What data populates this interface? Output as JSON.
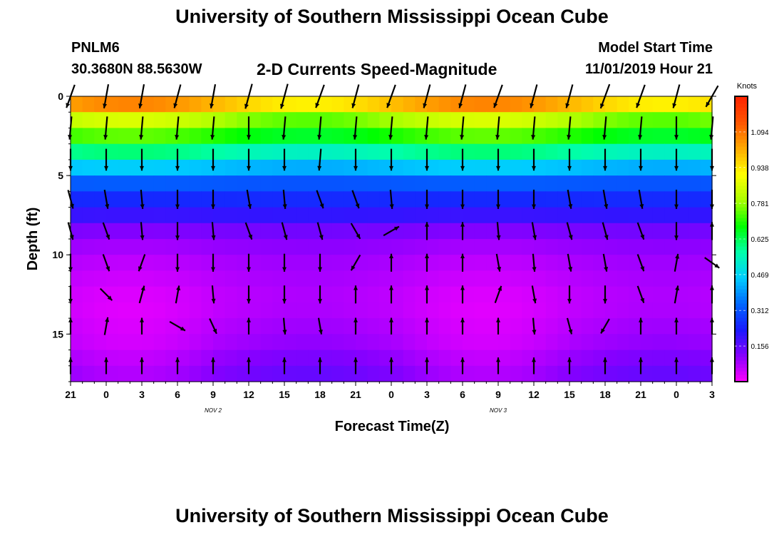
{
  "header": {
    "title": "University of Southern Mississippi Ocean Cube",
    "station_id": "PNLM6",
    "station_coords": "30.3680N 88.5630W",
    "plot_title": "2-D Currents Speed-Magnitude",
    "model_start_label": "Model Start Time",
    "model_start_value": "11/01/2019 Hour 21"
  },
  "footer": {
    "title": "University of Southern Mississippi Ocean Cube"
  },
  "chart_data": {
    "type": "heatmap",
    "title": "2-D Currents Speed-Magnitude",
    "xlabel": "Forecast Time(Z)",
    "ylabel": "Depth (ft)",
    "x_tick_labels": [
      "21",
      "0",
      "3",
      "6",
      "9",
      "12",
      "15",
      "18",
      "21",
      "0",
      "3",
      "6",
      "9",
      "12",
      "15",
      "18",
      "21",
      "0",
      "3"
    ],
    "x_hours": [
      0,
      3,
      6,
      9,
      12,
      15,
      18,
      21,
      24,
      27,
      30,
      33,
      36,
      39,
      42,
      45,
      48,
      51,
      54
    ],
    "x_range_hours": [
      0,
      54
    ],
    "date_labels": [
      {
        "text": "NOV 2",
        "hour": 15
      },
      {
        "text": "NOV 3",
        "hour": 39
      }
    ],
    "y_ticks": [
      0,
      5,
      10,
      15
    ],
    "ylim": [
      0,
      18
    ],
    "y_inverted": true,
    "colorbar": {
      "title": "Knots",
      "tick_labels": [
        "1.094",
        "0.938",
        "0.781",
        "0.625",
        "0.469",
        "0.312",
        "0.156"
      ],
      "tick_values": [
        1.094,
        0.938,
        0.781,
        0.625,
        0.469,
        0.312,
        0.156
      ],
      "range": [
        0,
        1.25
      ],
      "colors": [
        "#ff00ff",
        "#8800ff",
        "#1a1aff",
        "#0066ff",
        "#00ccff",
        "#00ffaa",
        "#00ff00",
        "#aaff00",
        "#ffff00",
        "#ffaa00",
        "#ff5500",
        "#ff2200"
      ]
    },
    "depth_layers": [
      {
        "depth": 0.5,
        "speed": 1.0
      },
      {
        "depth": 1.5,
        "speed": 0.8
      },
      {
        "depth": 2.5,
        "speed": 0.7
      },
      {
        "depth": 3.5,
        "speed": 0.57
      },
      {
        "depth": 4.5,
        "speed": 0.44
      },
      {
        "depth": 5.5,
        "speed": 0.32
      },
      {
        "depth": 6.5,
        "speed": 0.25
      },
      {
        "depth": 7.5,
        "speed": 0.2
      },
      {
        "depth": 8.5,
        "speed": 0.13
      },
      {
        "depth": 9.5,
        "speed": 0.1
      },
      {
        "depth": 10.5,
        "speed": 0.08
      },
      {
        "depth": 11.5,
        "speed": 0.07
      },
      {
        "depth": 12.5,
        "speed": 0.06
      },
      {
        "depth": 13.5,
        "speed": 0.06
      },
      {
        "depth": 14.5,
        "speed": 0.07
      },
      {
        "depth": 15.5,
        "speed": 0.08
      },
      {
        "depth": 16.5,
        "speed": 0.1
      },
      {
        "depth": 17.5,
        "speed": 0.12
      }
    ],
    "vector_depths": [
      0,
      2,
      4,
      6.5,
      8.5,
      10.5,
      12.5,
      14.5,
      17
    ],
    "vector_times": [
      0,
      3,
      6,
      9,
      12,
      15,
      18,
      21,
      24,
      27,
      30,
      33,
      36,
      39,
      42,
      45,
      48,
      51,
      54
    ],
    "vector_direction_deg": [
      [
        200,
        190,
        190,
        195,
        190,
        195,
        195,
        200,
        195,
        200,
        195,
        195,
        200,
        195,
        195,
        200,
        200,
        195,
        210
      ],
      [
        185,
        185,
        185,
        185,
        185,
        180,
        185,
        185,
        185,
        185,
        185,
        185,
        185,
        185,
        185,
        185,
        185,
        180,
        185
      ],
      [
        180,
        180,
        180,
        180,
        180,
        180,
        180,
        185,
        180,
        180,
        180,
        180,
        180,
        180,
        180,
        180,
        180,
        180,
        180
      ],
      [
        165,
        170,
        175,
        180,
        180,
        170,
        175,
        160,
        160,
        175,
        180,
        180,
        180,
        180,
        170,
        170,
        170,
        180,
        180
      ],
      [
        165,
        160,
        175,
        180,
        175,
        160,
        165,
        165,
        150,
        60,
        0,
        0,
        175,
        170,
        165,
        165,
        160,
        180,
        0
      ],
      [
        180,
        160,
        200,
        180,
        180,
        180,
        180,
        180,
        210,
        0,
        0,
        0,
        170,
        175,
        170,
        170,
        160,
        10,
        125
      ],
      [
        180,
        135,
        15,
        10,
        175,
        180,
        180,
        180,
        0,
        0,
        0,
        0,
        20,
        170,
        180,
        180,
        160,
        10,
        0
      ],
      [
        0,
        10,
        0,
        120,
        155,
        0,
        175,
        170,
        0,
        0,
        0,
        0,
        0,
        175,
        165,
        210,
        0,
        0,
        0
      ],
      [
        0,
        0,
        0,
        0,
        0,
        0,
        0,
        0,
        0,
        0,
        0,
        0,
        0,
        0,
        0,
        0,
        0,
        0,
        0
      ]
    ],
    "vector_speed_kt": [
      [
        0.9,
        0.9,
        0.9,
        0.9,
        0.9,
        1.0,
        1.0,
        0.9,
        0.9,
        0.9,
        0.9,
        0.9,
        0.9,
        0.9,
        0.9,
        1.0,
        0.9,
        0.9,
        0.9
      ],
      [
        0.8,
        0.8,
        0.8,
        0.8,
        0.8,
        0.8,
        0.8,
        0.8,
        0.8,
        0.8,
        0.8,
        0.8,
        0.8,
        0.8,
        0.8,
        0.8,
        0.8,
        0.8,
        0.8
      ],
      [
        0.7,
        0.7,
        0.7,
        0.7,
        0.7,
        0.7,
        0.7,
        0.7,
        0.7,
        0.7,
        0.7,
        0.7,
        0.7,
        0.7,
        0.7,
        0.7,
        0.7,
        0.7,
        0.7
      ],
      [
        0.5,
        0.5,
        0.5,
        0.5,
        0.5,
        0.5,
        0.5,
        0.5,
        0.5,
        0.5,
        0.5,
        0.5,
        0.5,
        0.5,
        0.5,
        0.5,
        0.5,
        0.5,
        0.5
      ],
      [
        0.4,
        0.4,
        0.4,
        0.4,
        0.4,
        0.4,
        0.4,
        0.4,
        0.4,
        0.4,
        0.4,
        0.4,
        0.4,
        0.4,
        0.4,
        0.4,
        0.4,
        0.4,
        0.4
      ],
      [
        0.4,
        0.4,
        0.4,
        0.4,
        0.4,
        0.4,
        0.4,
        0.4,
        0.4,
        0.4,
        0.4,
        0.4,
        0.4,
        0.4,
        0.4,
        0.4,
        0.4,
        0.4,
        0.4
      ],
      [
        0.4,
        0.3,
        0.4,
        0.4,
        0.4,
        0.4,
        0.4,
        0.4,
        0.4,
        0.4,
        0.4,
        0.4,
        0.4,
        0.4,
        0.4,
        0.4,
        0.4,
        0.4,
        0.4
      ],
      [
        0.3,
        0.4,
        0.3,
        0.4,
        0.3,
        0.3,
        0.3,
        0.3,
        0.3,
        0.3,
        0.3,
        0.3,
        0.3,
        0.3,
        0.3,
        0.3,
        0.3,
        0.3,
        0.3
      ],
      [
        0.3,
        0.3,
        0.3,
        0.3,
        0.3,
        0.3,
        0.3,
        0.3,
        0.3,
        0.3,
        0.3,
        0.3,
        0.3,
        0.3,
        0.3,
        0.3,
        0.3,
        0.3,
        0.3
      ]
    ]
  }
}
